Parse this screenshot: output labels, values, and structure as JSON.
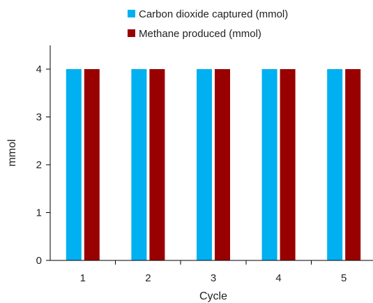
{
  "chart_data": {
    "type": "bar",
    "title": "",
    "xlabel": "Cycle",
    "ylabel": "mmol",
    "categories": [
      "1",
      "2",
      "3",
      "4",
      "5"
    ],
    "yticks": [
      "0",
      "1",
      "2",
      "3",
      "4"
    ],
    "ylim": [
      0,
      4.5
    ],
    "grid": false,
    "legend_position": "top-right",
    "series": [
      {
        "name": "Carbon dioxide captured (mmol)",
        "color": "#00b0f0",
        "values": [
          4,
          4,
          4,
          4,
          4
        ]
      },
      {
        "name": "Methane produced (mmol)",
        "color": "#990000",
        "values": [
          4,
          4,
          4,
          4,
          4
        ]
      }
    ]
  }
}
